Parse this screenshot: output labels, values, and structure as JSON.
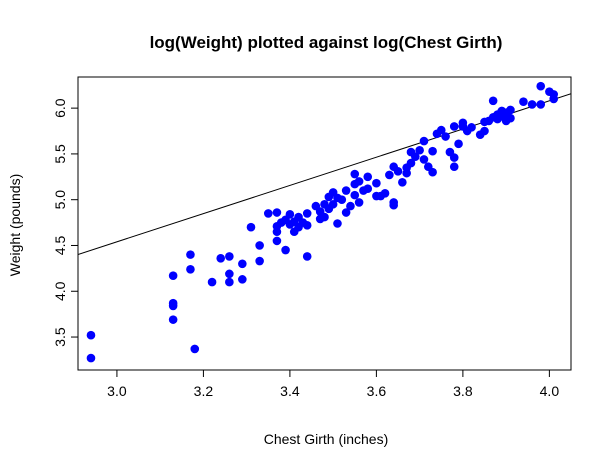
{
  "chart_data": {
    "type": "scatter",
    "title": "log(Weight) plotted against log(Chest Girth)",
    "xlabel": "Chest Girth (inches)",
    "ylabel": "Weight (pounds)",
    "xlim": [
      2.91,
      4.05
    ],
    "ylim": [
      3.14,
      6.34
    ],
    "x_ticks": [
      3.0,
      3.2,
      3.4,
      3.6,
      3.8,
      4.0
    ],
    "x_tick_labels": [
      "3.0",
      "3.2",
      "3.4",
      "3.6",
      "3.8",
      "4.0"
    ],
    "y_ticks": [
      3.5,
      4.0,
      4.5,
      5.0,
      5.5,
      6.0
    ],
    "y_tick_labels": [
      "3.5",
      "4.0",
      "4.5",
      "5.0",
      "5.5",
      "6.0"
    ],
    "grid": false,
    "point_color": "#0000ff",
    "line_color": "#000000",
    "fit_line": {
      "intercept": -0.08,
      "slope": 1.54
    },
    "series": [
      {
        "points": [
          [
            2.94,
            3.52
          ],
          [
            2.94,
            3.27
          ],
          [
            3.13,
            3.87
          ],
          [
            3.13,
            3.84
          ],
          [
            3.13,
            3.69
          ],
          [
            3.13,
            4.17
          ],
          [
            3.17,
            4.4
          ],
          [
            3.17,
            4.24
          ],
          [
            3.18,
            3.37
          ],
          [
            3.22,
            4.1
          ],
          [
            3.24,
            4.36
          ],
          [
            3.26,
            4.38
          ],
          [
            3.26,
            4.19
          ],
          [
            3.26,
            4.1
          ],
          [
            3.29,
            4.13
          ],
          [
            3.29,
            4.3
          ],
          [
            3.31,
            4.7
          ],
          [
            3.33,
            4.33
          ],
          [
            3.33,
            4.5
          ],
          [
            3.35,
            4.85
          ],
          [
            3.37,
            4.86
          ],
          [
            3.37,
            4.71
          ],
          [
            3.37,
            4.65
          ],
          [
            3.37,
            4.55
          ],
          [
            3.38,
            4.75
          ],
          [
            3.39,
            4.45
          ],
          [
            3.39,
            4.78
          ],
          [
            3.4,
            4.73
          ],
          [
            3.4,
            4.84
          ],
          [
            3.41,
            4.65
          ],
          [
            3.41,
            4.76
          ],
          [
            3.42,
            4.81
          ],
          [
            3.42,
            4.7
          ],
          [
            3.43,
            4.75
          ],
          [
            3.44,
            4.72
          ],
          [
            3.44,
            4.85
          ],
          [
            3.44,
            4.38
          ],
          [
            3.46,
            4.93
          ],
          [
            3.47,
            4.79
          ],
          [
            3.47,
            4.87
          ],
          [
            3.48,
            4.95
          ],
          [
            3.48,
            4.81
          ],
          [
            3.49,
            5.03
          ],
          [
            3.49,
            4.9
          ],
          [
            3.5,
            5.08
          ],
          [
            3.5,
            4.95
          ],
          [
            3.51,
            5.02
          ],
          [
            3.51,
            4.74
          ],
          [
            3.52,
            5.0
          ],
          [
            3.53,
            4.86
          ],
          [
            3.53,
            5.1
          ],
          [
            3.54,
            4.93
          ],
          [
            3.55,
            5.17
          ],
          [
            3.55,
            5.05
          ],
          [
            3.55,
            5.28
          ],
          [
            3.56,
            4.97
          ],
          [
            3.56,
            5.2
          ],
          [
            3.57,
            5.1
          ],
          [
            3.58,
            5.25
          ],
          [
            3.58,
            5.12
          ],
          [
            3.6,
            5.04
          ],
          [
            3.6,
            5.18
          ],
          [
            3.61,
            5.04
          ],
          [
            3.62,
            5.07
          ],
          [
            3.63,
            5.27
          ],
          [
            3.64,
            5.36
          ],
          [
            3.64,
            4.97
          ],
          [
            3.64,
            4.94
          ],
          [
            3.65,
            5.31
          ],
          [
            3.66,
            5.19
          ],
          [
            3.67,
            5.29
          ],
          [
            3.67,
            5.35
          ],
          [
            3.68,
            5.4
          ],
          [
            3.68,
            5.52
          ],
          [
            3.69,
            5.47
          ],
          [
            3.7,
            5.54
          ],
          [
            3.71,
            5.64
          ],
          [
            3.71,
            5.44
          ],
          [
            3.72,
            5.36
          ],
          [
            3.73,
            5.53
          ],
          [
            3.73,
            5.3
          ],
          [
            3.74,
            5.72
          ],
          [
            3.75,
            5.76
          ],
          [
            3.76,
            5.69
          ],
          [
            3.77,
            5.52
          ],
          [
            3.78,
            5.8
          ],
          [
            3.78,
            5.46
          ],
          [
            3.78,
            5.36
          ],
          [
            3.79,
            5.61
          ],
          [
            3.8,
            5.8
          ],
          [
            3.8,
            5.84
          ],
          [
            3.81,
            5.75
          ],
          [
            3.82,
            5.79
          ],
          [
            3.84,
            5.71
          ],
          [
            3.85,
            5.85
          ],
          [
            3.85,
            5.75
          ],
          [
            3.86,
            5.86
          ],
          [
            3.87,
            6.08
          ],
          [
            3.87,
            5.9
          ],
          [
            3.88,
            5.88
          ],
          [
            3.88,
            5.93
          ],
          [
            3.89,
            5.91
          ],
          [
            3.89,
            5.97
          ],
          [
            3.9,
            5.95
          ],
          [
            3.9,
            5.86
          ],
          [
            3.91,
            5.98
          ],
          [
            3.91,
            5.89
          ],
          [
            3.94,
            6.07
          ],
          [
            3.96,
            6.04
          ],
          [
            3.98,
            6.04
          ],
          [
            3.98,
            6.24
          ],
          [
            4.0,
            6.18
          ],
          [
            4.01,
            6.15
          ],
          [
            4.01,
            6.1
          ]
        ]
      }
    ]
  }
}
